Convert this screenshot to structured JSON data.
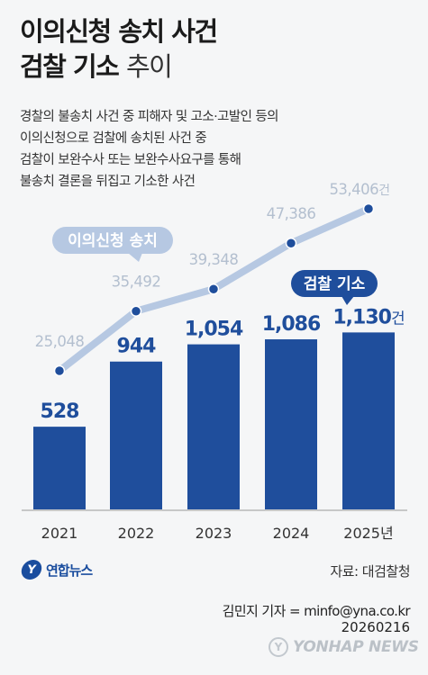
{
  "title_line1": "이의신청 송치 사건",
  "title_line2_bold": "검찰 기소",
  "title_line2_light": "추이",
  "description": [
    "경찰의 불송치 사건 중 피해자 및 고소·고발인 등의",
    "이의신청으로 검찰에 송치된 사건 중",
    "검찰이 보완수사 또는 보완수사요구를 통해",
    "불송치 결론을 뒤집고 기소한 사건"
  ],
  "source": "자료: 대검찰청",
  "byline": "김민지 기자 = minfo@yna.co.kr",
  "date": "20260216",
  "logo": {
    "mark": "Y",
    "text": "연합뉴스"
  },
  "watermark": {
    "mark": "Y",
    "text": "YONHAP NEWS"
  },
  "colors": {
    "bar": "#1f4e9c",
    "line": "#b6c8e2",
    "line_label": "#b3bfcf",
    "bar_label": "#1f4e9c",
    "line_callout_bg": "#b6c8e2",
    "bar_callout_bg": "#1f4e9c"
  },
  "chart_data": {
    "type": "bar",
    "categories": [
      "2021",
      "2022",
      "2023",
      "2024",
      "2025년"
    ],
    "series": [
      {
        "name": "검찰 기소",
        "type": "bar",
        "values": [
          528,
          944,
          1054,
          1086,
          1130
        ],
        "labels": [
          "528",
          "944",
          "1,054",
          "1,086",
          "1,130건"
        ]
      },
      {
        "name": "이의신청 송치",
        "type": "line",
        "values": [
          25048,
          35492,
          39348,
          47386,
          53406
        ],
        "labels": [
          "25,048",
          "35,492",
          "39,348",
          "47,386",
          "53,406건"
        ]
      }
    ],
    "xlabel": "",
    "ylabel": "",
    "grid": false
  }
}
